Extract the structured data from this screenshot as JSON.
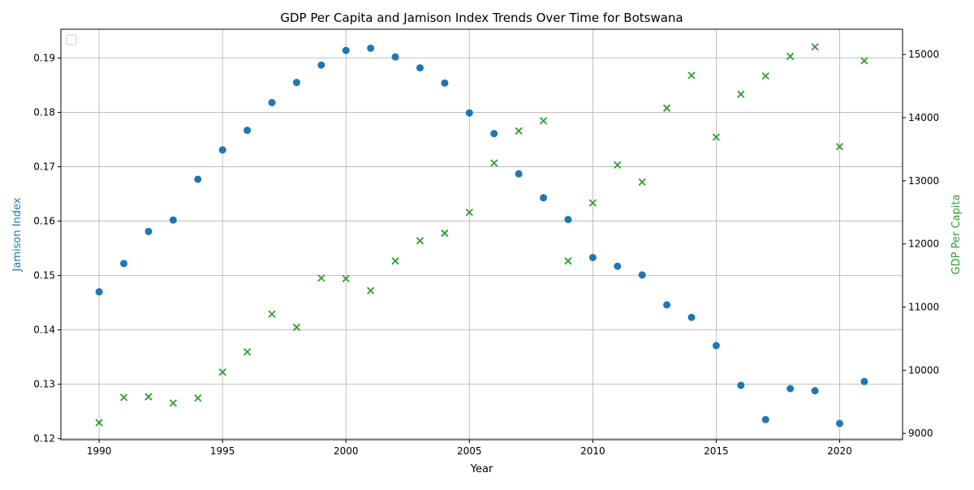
{
  "chart_data": {
    "type": "scatter",
    "title": "GDP Per Capita and Jamison Index Trends Over Time for Botswana",
    "xlabel": "Year",
    "ylabel": "Jamison Index",
    "ylabel_right": "GDP Per Capita",
    "xlim": [
      1988.45,
      2022.55
    ],
    "ylim": [
      0.1198,
      0.1953
    ],
    "ylim_right": [
      8900,
      15400
    ],
    "grid": true,
    "legend": "top-left, empty",
    "x_ticks": [
      1990,
      1995,
      2000,
      2005,
      2010,
      2015,
      2020
    ],
    "y_ticks": [
      0.12,
      0.13,
      0.14,
      0.15,
      0.16,
      0.17,
      0.18,
      0.19
    ],
    "y_ticks_right": [
      9000,
      10000,
      11000,
      12000,
      13000,
      14000,
      15000
    ],
    "x": [
      1990,
      1991,
      1992,
      1993,
      1994,
      1995,
      1996,
      1997,
      1998,
      1999,
      2000,
      2001,
      2002,
      2003,
      2004,
      2005,
      2006,
      2007,
      2008,
      2009,
      2010,
      2011,
      2012,
      2013,
      2014,
      2015,
      2016,
      2017,
      2018,
      2019,
      2020,
      2021
    ],
    "series": [
      {
        "axis": "left",
        "marker": "circle",
        "color": "#1f77b4",
        "values": [
          0.147,
          0.1522,
          0.1581,
          0.1602,
          0.1677,
          0.1731,
          0.1767,
          0.1818,
          0.1855,
          0.1887,
          0.1914,
          0.1918,
          0.1902,
          0.1882,
          0.1854,
          0.1799,
          0.1761,
          0.1687,
          0.1643,
          0.1603,
          0.1533,
          0.1517,
          0.1501,
          0.1446,
          0.1423,
          0.1371,
          0.1298,
          0.1235,
          0.1292,
          0.1288,
          0.1228,
          0.1305
        ]
      },
      {
        "axis": "right",
        "marker": "x",
        "color": "#2ca02c",
        "values": [
          9170,
          9570,
          9580,
          9480,
          9560,
          9970,
          10290,
          10890,
          10680,
          11460,
          11450,
          11260,
          11730,
          12050,
          12170,
          12500,
          13280,
          13790,
          13950,
          11730,
          12650,
          13250,
          12980,
          14150,
          14670,
          13690,
          14370,
          14660,
          14970,
          15120,
          13540,
          14900
        ]
      }
    ]
  }
}
